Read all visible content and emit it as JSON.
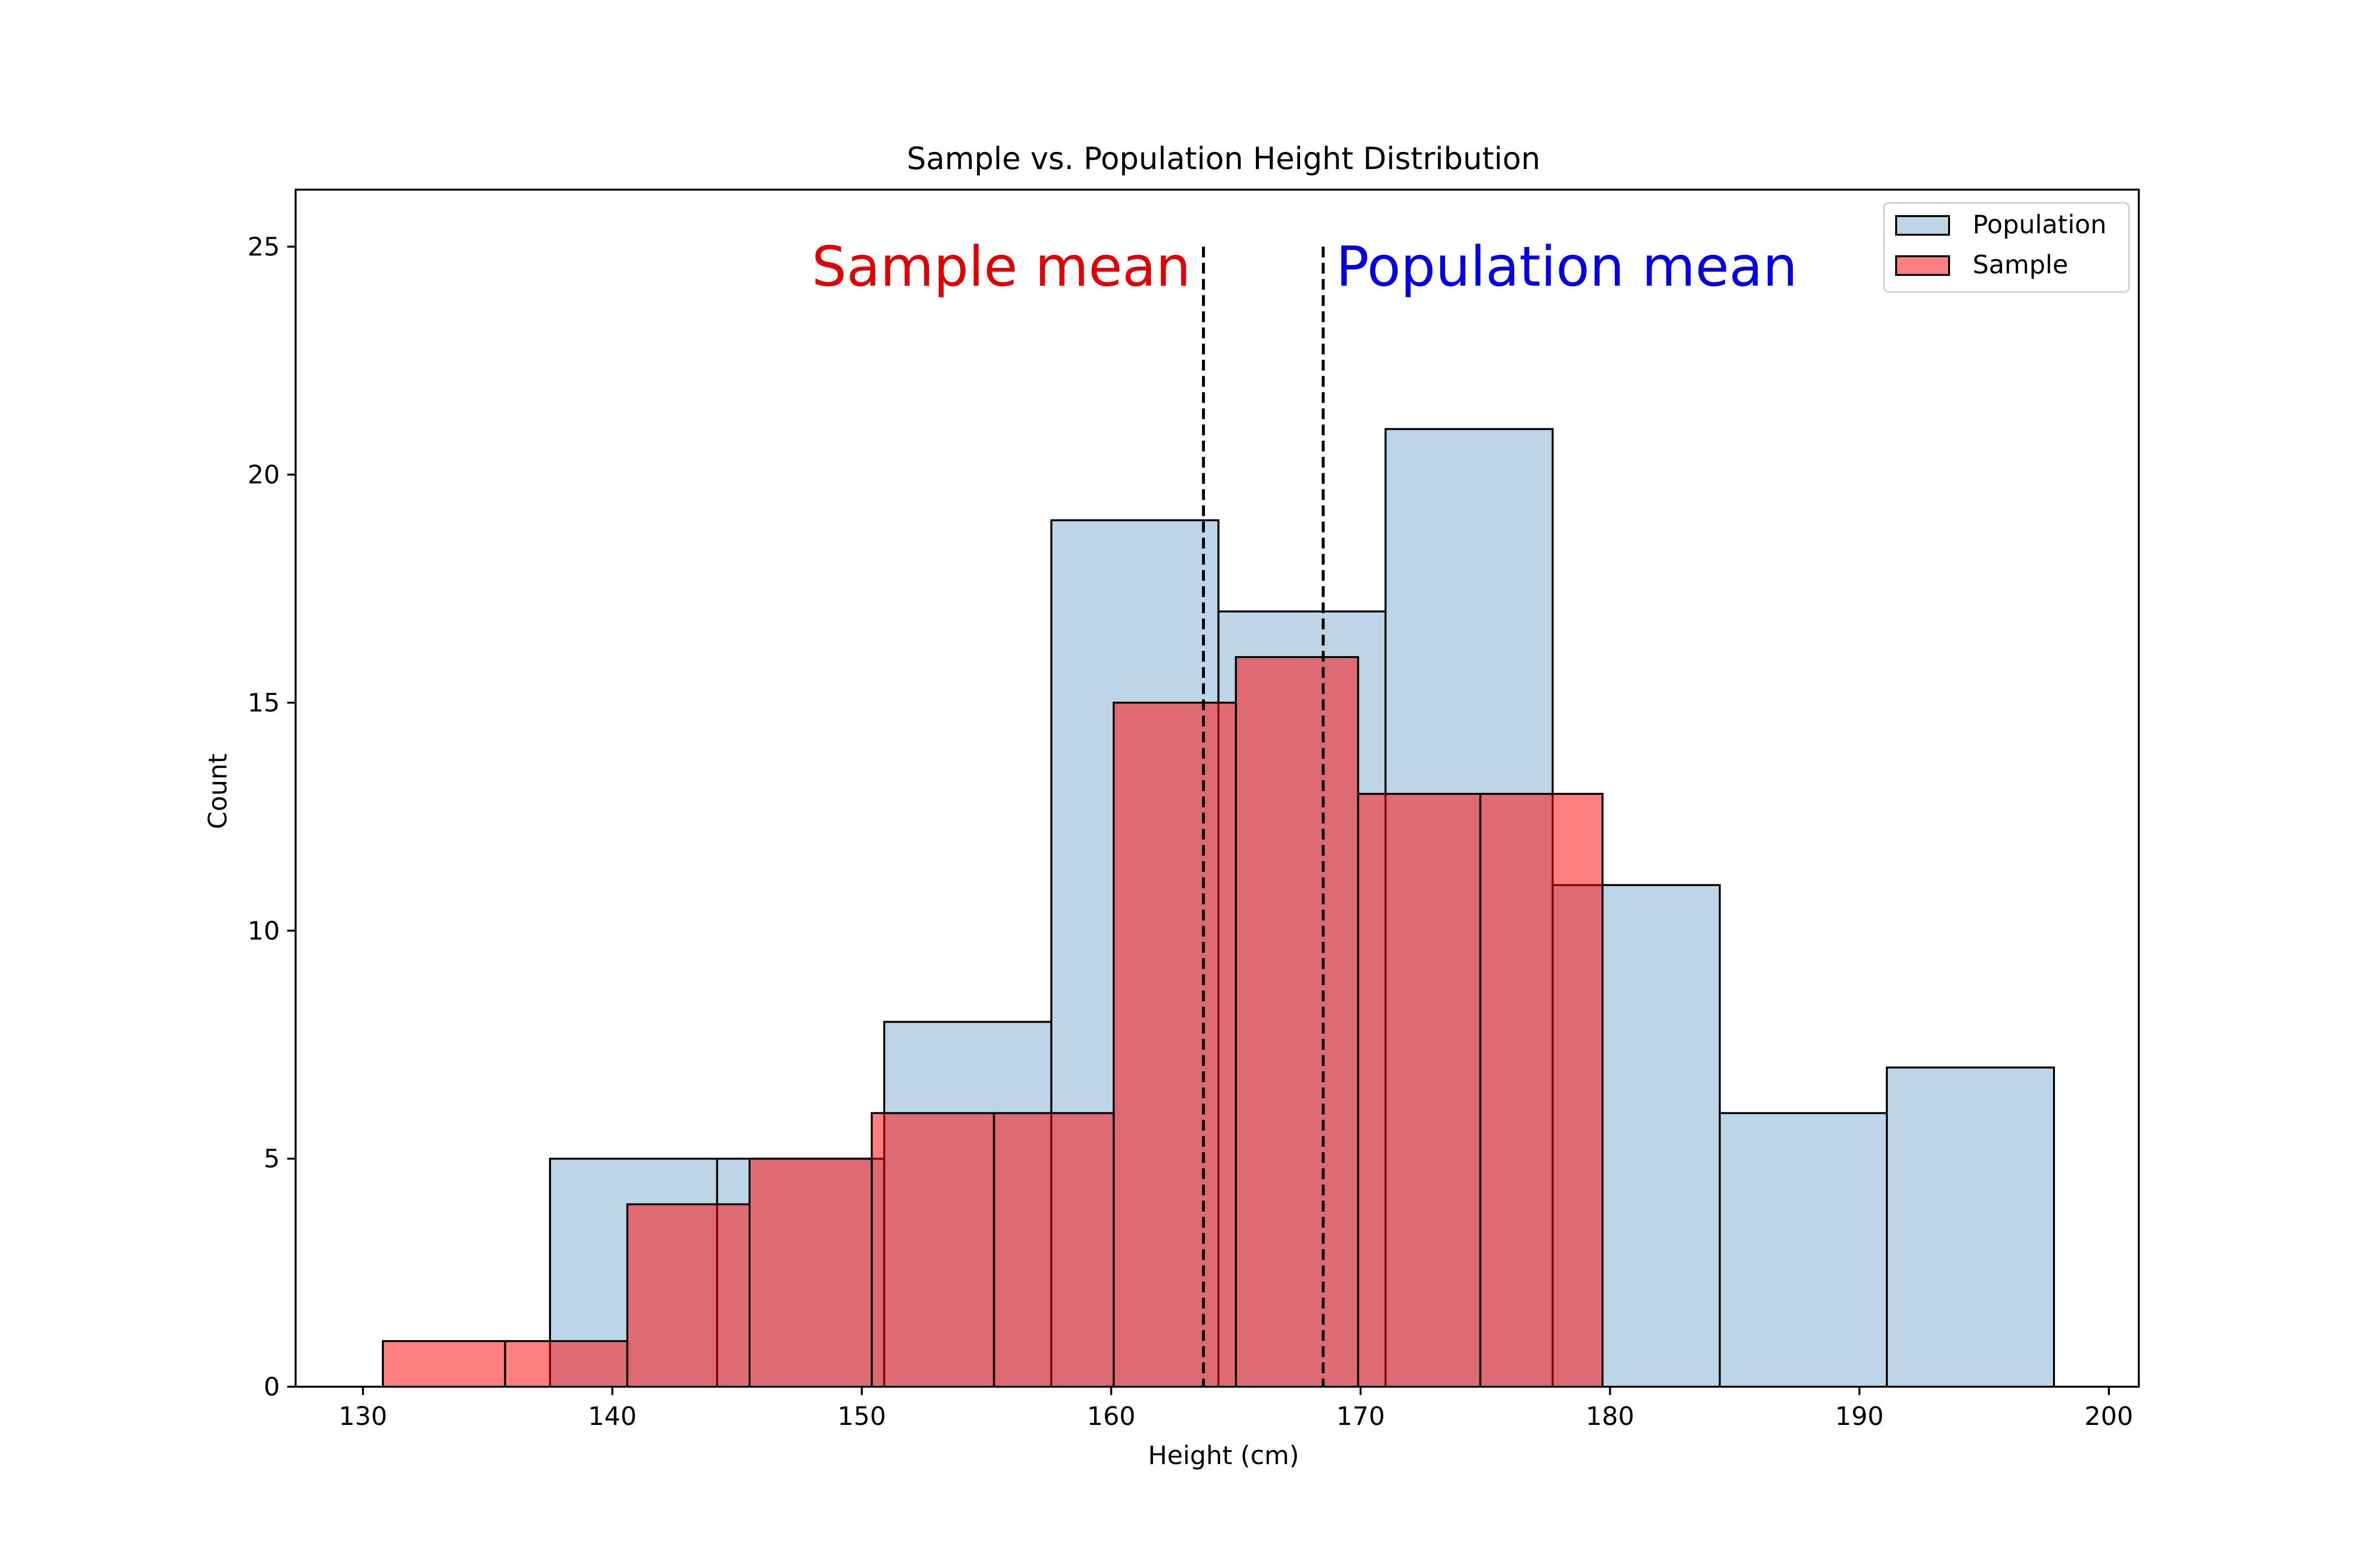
{
  "chart_data": {
    "type": "histogram",
    "title": "Sample vs. Population Height Distribution",
    "xlabel": "Height (cm)",
    "ylabel": "Count",
    "xlim": [
      127.3,
      201.2
    ],
    "ylim": [
      0,
      26.25
    ],
    "xticks": [
      130,
      140,
      150,
      160,
      170,
      180,
      190,
      200
    ],
    "yticks": [
      0,
      5,
      10,
      15,
      20,
      25
    ],
    "grid": false,
    "legend_position": "top-right",
    "series": [
      {
        "name": "Population",
        "color": "#bcd6e8",
        "bins": [
          {
            "x0": 137.5,
            "x1": 144.2,
            "count": 5
          },
          {
            "x0": 144.2,
            "x1": 150.9,
            "count": 5
          },
          {
            "x0": 150.9,
            "x1": 157.6,
            "count": 8
          },
          {
            "x0": 157.6,
            "x1": 164.3,
            "count": 19
          },
          {
            "x0": 164.3,
            "x1": 171.0,
            "count": 17
          },
          {
            "x0": 171.0,
            "x1": 177.7,
            "count": 21
          },
          {
            "x0": 177.7,
            "x1": 184.4,
            "count": 11
          },
          {
            "x0": 184.4,
            "x1": 191.1,
            "count": 6
          },
          {
            "x0": 191.1,
            "x1": 197.8,
            "count": 7
          }
        ]
      },
      {
        "name": "Sample",
        "color": "#ff0000",
        "opacity": 0.5,
        "bins": [
          {
            "x0": 130.8,
            "x1": 135.7,
            "count": 1
          },
          {
            "x0": 135.7,
            "x1": 140.6,
            "count": 1
          },
          {
            "x0": 140.6,
            "x1": 145.5,
            "count": 4
          },
          {
            "x0": 145.5,
            "x1": 150.4,
            "count": 5
          },
          {
            "x0": 150.4,
            "x1": 155.3,
            "count": 6
          },
          {
            "x0": 155.3,
            "x1": 160.1,
            "count": 6
          },
          {
            "x0": 160.1,
            "x1": 165.0,
            "count": 15
          },
          {
            "x0": 165.0,
            "x1": 169.9,
            "count": 16
          },
          {
            "x0": 169.9,
            "x1": 174.8,
            "count": 13
          },
          {
            "x0": 174.8,
            "x1": 179.7,
            "count": 13
          }
        ]
      }
    ],
    "annotations": [
      {
        "label": "Sample mean",
        "x": 163.7,
        "color": "#e00000",
        "side": "left"
      },
      {
        "label": "Population mean",
        "x": 168.5,
        "color": "#0000e0",
        "side": "right"
      }
    ],
    "mean_line_top": 25
  }
}
